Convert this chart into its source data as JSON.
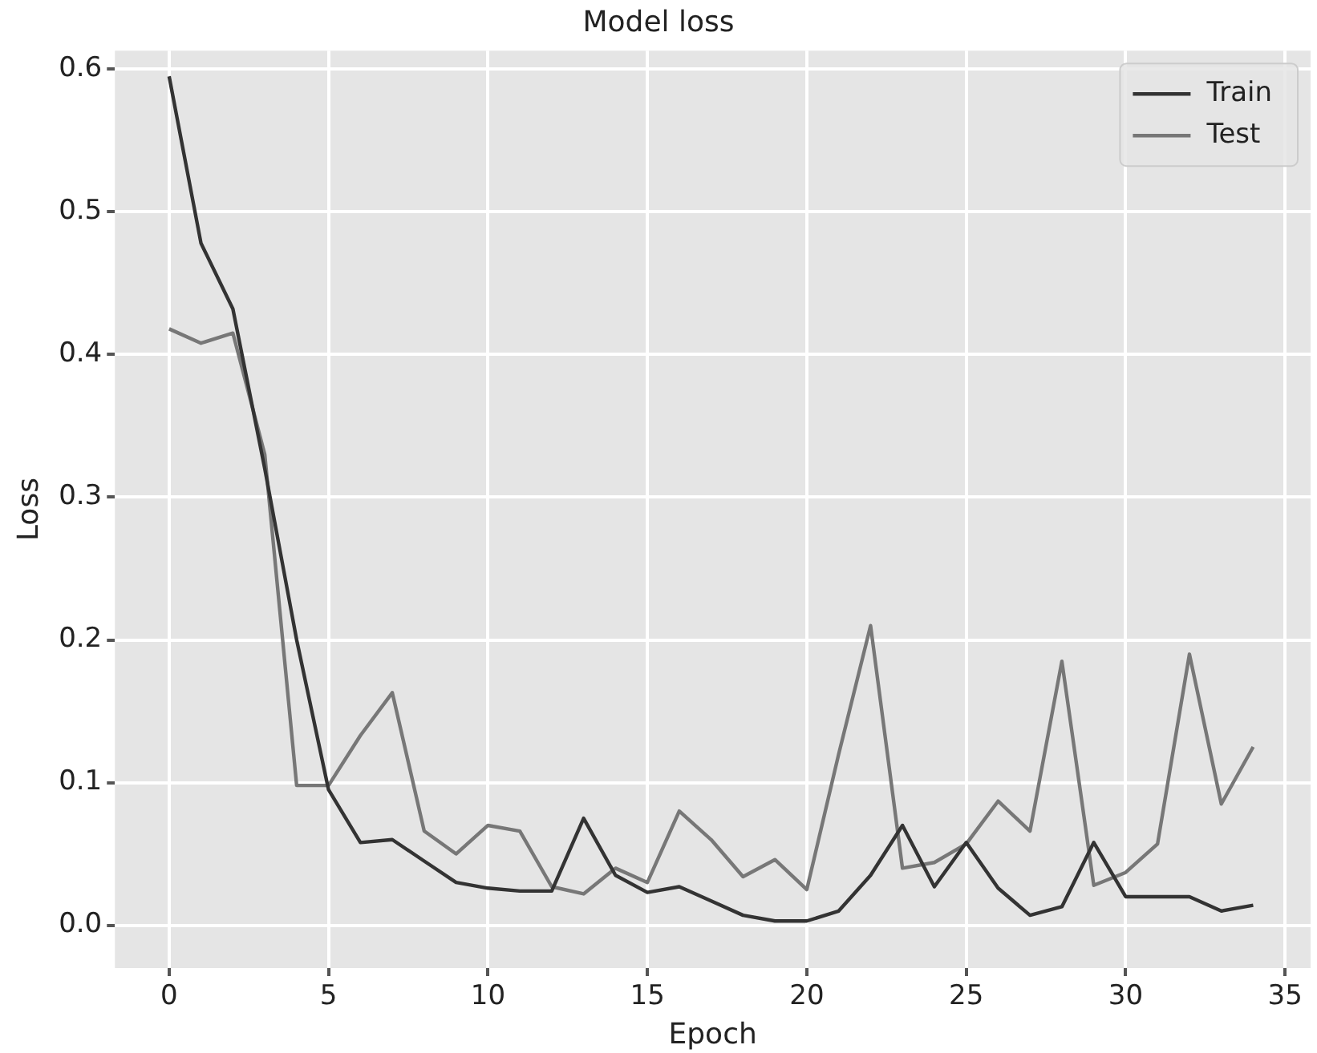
{
  "chart_data": {
    "type": "line",
    "title": "Model loss",
    "xlabel": "Epoch",
    "ylabel": "Loss",
    "x": [
      0,
      1,
      2,
      3,
      4,
      5,
      6,
      7,
      8,
      9,
      10,
      11,
      12,
      13,
      14,
      15,
      16,
      17,
      18,
      19,
      20,
      21,
      22,
      23,
      24,
      25,
      26,
      27,
      28,
      29,
      30,
      31,
      32,
      33,
      34
    ],
    "series": [
      {
        "name": "Train",
        "color": "#333333",
        "values": [
          0.595,
          0.478,
          0.432,
          0.32,
          0.2,
          0.095,
          0.058,
          0.06,
          0.045,
          0.03,
          0.026,
          0.024,
          0.024,
          0.075,
          0.035,
          0.023,
          0.027,
          0.017,
          0.007,
          0.003,
          0.003,
          0.01,
          0.035,
          0.07,
          0.027,
          0.058,
          0.026,
          0.007,
          0.013,
          0.058,
          0.02,
          0.02,
          0.02,
          0.01,
          0.014
        ]
      },
      {
        "name": "Test",
        "color": "#777777",
        "values": [
          0.418,
          0.408,
          0.415,
          0.33,
          0.098,
          0.098,
          0.133,
          0.163,
          0.066,
          0.05,
          0.07,
          0.066,
          0.027,
          0.022,
          0.04,
          0.03,
          0.08,
          0.06,
          0.034,
          0.046,
          0.025,
          0.12,
          0.21,
          0.04,
          0.044,
          0.057,
          0.087,
          0.066,
          0.185,
          0.028,
          0.037,
          0.057,
          0.19,
          0.085,
          0.125
        ]
      }
    ],
    "xlim": [
      -1.7,
      35.8
    ],
    "xticks": [
      0,
      5,
      10,
      15,
      20,
      25,
      30,
      35
    ],
    "ylim": [
      -0.03,
      0.613
    ],
    "yticks": [
      {
        "value": 0,
        "label": "0.0"
      },
      {
        "value": 0.1,
        "label": "0.1"
      },
      {
        "value": 0.2,
        "label": "0.2"
      },
      {
        "value": 0.3,
        "label": "0.3"
      },
      {
        "value": 0.4,
        "label": "0.4"
      },
      {
        "value": 0.5,
        "label": "0.5"
      },
      {
        "value": 0.6,
        "label": "0.6"
      }
    ],
    "grid": true,
    "legend": "top right",
    "marker": "none",
    "line_style": "solid"
  }
}
